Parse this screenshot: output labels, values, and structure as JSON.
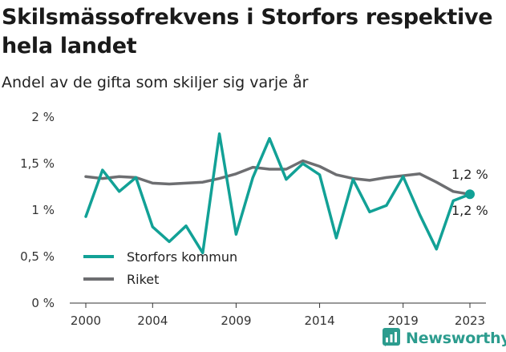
{
  "title": "Skilsmässofrekvens i Storfors respektive hela landet",
  "subtitle": "Andel av de gifta som skiljer sig varje år",
  "brand": "Newsworthy",
  "colors": {
    "storfors": "#12a196",
    "riket": "#6d6e71",
    "brand": "#2c9c8e"
  },
  "chart_data": {
    "type": "line",
    "x": [
      2000,
      2001,
      2002,
      2003,
      2004,
      2005,
      2006,
      2007,
      2008,
      2009,
      2010,
      2011,
      2012,
      2013,
      2014,
      2015,
      2016,
      2017,
      2018,
      2019,
      2020,
      2021,
      2022,
      2023
    ],
    "series": [
      {
        "name": "Storfors kommun",
        "values": [
          0.93,
          1.43,
          1.2,
          1.35,
          0.82,
          0.66,
          0.83,
          0.54,
          1.82,
          0.74,
          1.35,
          1.77,
          1.33,
          1.5,
          1.38,
          0.7,
          1.33,
          0.98,
          1.05,
          1.36,
          0.95,
          0.58,
          1.1,
          1.17
        ]
      },
      {
        "name": "Riket",
        "values": [
          1.36,
          1.34,
          1.36,
          1.35,
          1.29,
          1.28,
          1.29,
          1.3,
          1.34,
          1.39,
          1.46,
          1.44,
          1.44,
          1.53,
          1.47,
          1.38,
          1.34,
          1.32,
          1.35,
          1.37,
          1.39,
          1.3,
          1.2,
          1.17
        ]
      }
    ],
    "xticks": [
      "2000",
      "2004",
      "2009",
      "2014",
      "2019",
      "2023"
    ],
    "yticks": [
      "0 %",
      "0,5 %",
      "1 %",
      "1,5 %",
      "2 %"
    ],
    "ytick_values": [
      0,
      0.5,
      1,
      1.5,
      2
    ],
    "xlim": [
      2000,
      2023
    ],
    "ylim": [
      0,
      2
    ],
    "end_labels": [
      "1,2 %",
      "1,2 %"
    ],
    "legend": [
      "Storfors kommun",
      "Riket"
    ],
    "grid": false,
    "legend_position": "bottom-left"
  }
}
